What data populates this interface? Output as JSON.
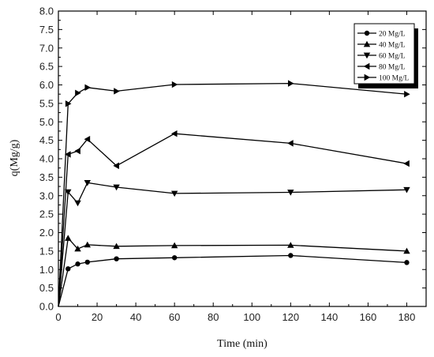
{
  "chart_data": {
    "type": "line",
    "xlabel": "Time (min)",
    "ylabel": "q(Mg/g)",
    "xlim": [
      0,
      190
    ],
    "ylim": [
      0,
      8
    ],
    "xticks": [
      "0",
      "20",
      "40",
      "60",
      "80",
      "100",
      "120",
      "140",
      "160",
      "180"
    ],
    "yticks": [
      "0.0",
      "0.5",
      "1.0",
      "1.5",
      "2.0",
      "2.5",
      "3.0",
      "3.5",
      "4.0",
      "4.5",
      "5.0",
      "5.5",
      "6.0",
      "6.5",
      "7.0",
      "7.5",
      "8.0"
    ],
    "legend_position": "top-right",
    "grid": false,
    "series": [
      {
        "name": "20 Mg/L",
        "marker": "circle",
        "x": [
          0,
          5,
          10,
          15,
          30,
          60,
          120,
          180
        ],
        "y": [
          0,
          1.02,
          1.15,
          1.2,
          1.29,
          1.32,
          1.38,
          1.19
        ]
      },
      {
        "name": "40 Mg/L",
        "marker": "triangle-up",
        "x": [
          0,
          5,
          10,
          15,
          30,
          60,
          120,
          180
        ],
        "y": [
          0,
          1.85,
          1.56,
          1.67,
          1.63,
          1.65,
          1.66,
          1.5
        ]
      },
      {
        "name": "60 Mg/L",
        "marker": "triangle-down",
        "x": [
          0,
          5,
          10,
          15,
          30,
          60,
          120,
          180
        ],
        "y": [
          0,
          3.1,
          2.8,
          3.35,
          3.23,
          3.06,
          3.09,
          3.16
        ]
      },
      {
        "name": "80 Mg/L",
        "marker": "triangle-left",
        "x": [
          0,
          5,
          10,
          15,
          30,
          60,
          120,
          180
        ],
        "y": [
          0,
          4.12,
          4.21,
          4.53,
          3.81,
          4.68,
          4.42,
          3.87
        ]
      },
      {
        "name": "100 Mg/L",
        "marker": "triangle-right",
        "x": [
          0,
          5,
          10,
          15,
          30,
          60,
          120,
          180
        ],
        "y": [
          0,
          5.49,
          5.78,
          5.93,
          5.83,
          6.01,
          6.04,
          5.75
        ]
      }
    ]
  }
}
